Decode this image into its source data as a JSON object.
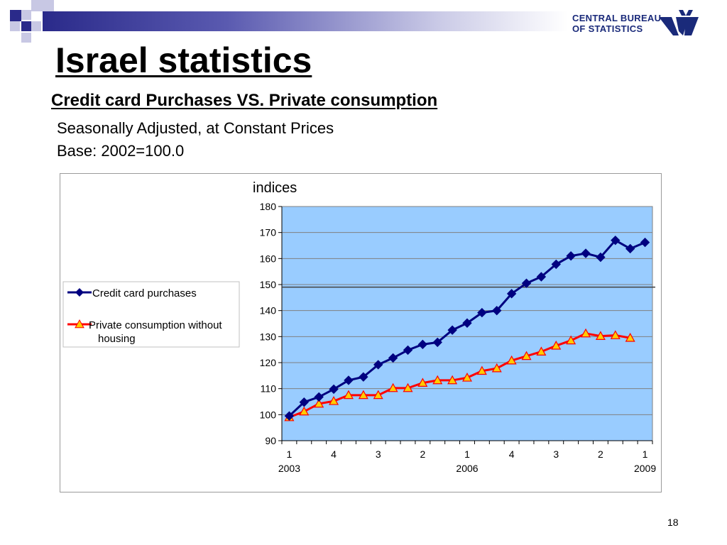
{
  "slide": {
    "title": "Israel statistics",
    "subtitle": "Credit card Purchases VS. Private consumption",
    "line3": "Seasonally Adjusted, at Constant Prices",
    "line4": "Base: 2002=100.0",
    "page_number": "18"
  },
  "logo": {
    "line1": "CENTRAL BUREAU",
    "line2": "OF STATISTICS",
    "color": "#1a2a7a"
  },
  "colors": {
    "plot_bg": "#99ccff",
    "series1": "#000080",
    "series2_line": "#ff0000",
    "series2_marker": "#ffcc00",
    "accent_bar": "#2a2a8a"
  },
  "chart_data": {
    "type": "line",
    "ylabel": "indices",
    "ylim": [
      90,
      180
    ],
    "yticks": [
      90,
      100,
      110,
      120,
      130,
      140,
      150,
      160,
      170,
      180
    ],
    "x_tick_labels": [
      {
        "index": 0,
        "quarter": "1",
        "year": "2003"
      },
      {
        "index": 3,
        "quarter": "4",
        "year": ""
      },
      {
        "index": 6,
        "quarter": "3",
        "year": ""
      },
      {
        "index": 9,
        "quarter": "2",
        "year": ""
      },
      {
        "index": 12,
        "quarter": "1",
        "year": "2006"
      },
      {
        "index": 15,
        "quarter": "4",
        "year": ""
      },
      {
        "index": 18,
        "quarter": "3",
        "year": ""
      },
      {
        "index": 21,
        "quarter": "2",
        "year": ""
      },
      {
        "index": 24,
        "quarter": "1",
        "year": "2009"
      }
    ],
    "n_points": 25,
    "reference_line": 149,
    "grid": true,
    "legend": "left",
    "series": [
      {
        "name": "Credit card purchases",
        "marker": "diamond",
        "values": [
          99.5,
          104.8,
          106.8,
          109.8,
          113.2,
          114.5,
          119.2,
          121.8,
          124.8,
          127.0,
          127.8,
          132.5,
          135.2,
          139.2,
          140.0,
          146.5,
          150.5,
          153.0,
          157.8,
          161.0,
          162.0,
          160.5,
          167.0,
          163.8,
          166.2
        ]
      },
      {
        "name": "Private consumption without housing",
        "marker": "triangle",
        "values": [
          99.0,
          101.2,
          104.2,
          105.2,
          107.5,
          107.5,
          107.5,
          110.2,
          110.2,
          112.2,
          113.2,
          113.2,
          114.2,
          116.8,
          117.8,
          120.8,
          122.5,
          124.2,
          126.5,
          128.5,
          131.2,
          130.2,
          130.5,
          129.5
        ]
      }
    ]
  }
}
